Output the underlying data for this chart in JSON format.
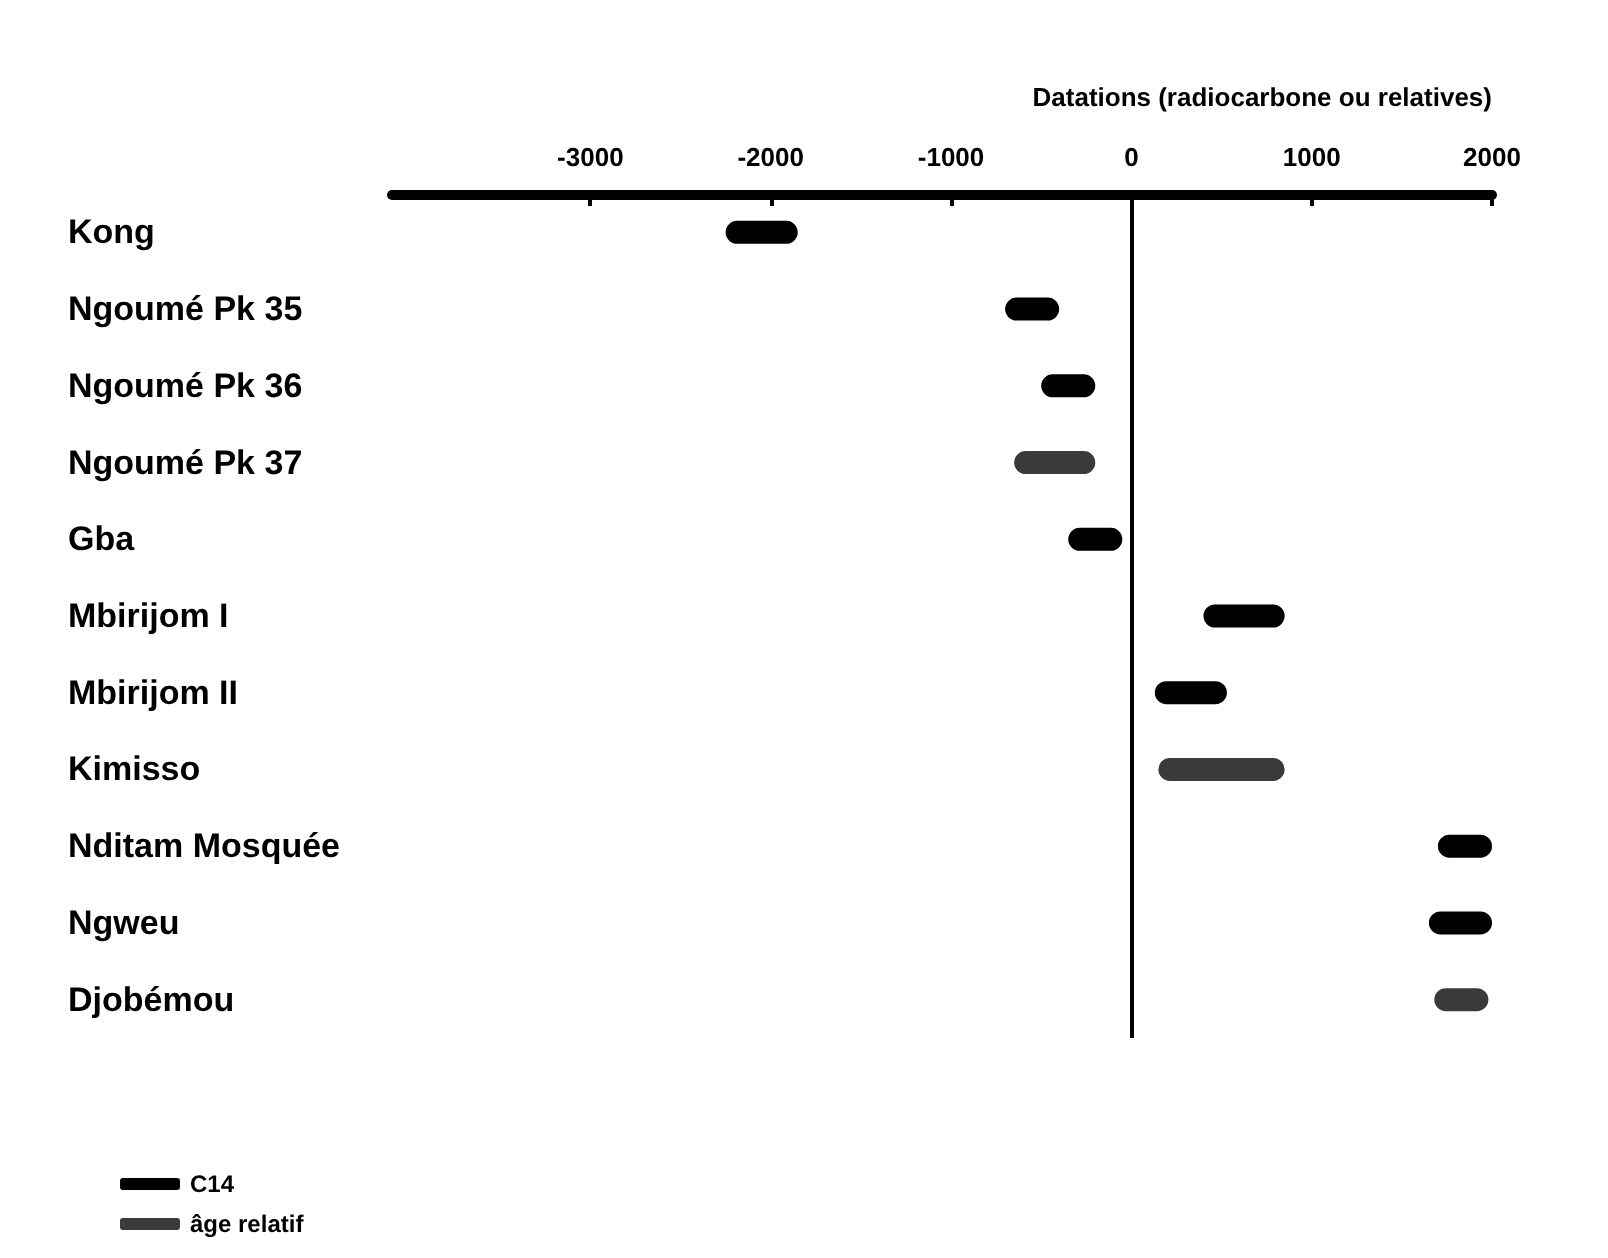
{
  "chart_data": {
    "type": "bar",
    "orientation": "horizontal",
    "xlabel": "Datations (radiocarbone ou relatives)",
    "categories": [
      "Kong",
      "Ngoumé Pk 35",
      "Ngoumé Pk 36",
      "Ngoumé Pk 37",
      "Gba",
      "Mbirijom I",
      "Mbirijom II",
      "Kimisso",
      "Nditam Mosquée",
      "Ngweu",
      "Djobémou"
    ],
    "series": [
      {
        "name": "C14",
        "color": "#000000",
        "base": [
          -2250,
          -700,
          -500,
          null,
          -350,
          400,
          130,
          null,
          1700,
          1650,
          null
        ],
        "values": [
          400,
          300,
          300,
          null,
          300,
          450,
          400,
          null,
          300,
          350,
          null
        ]
      },
      {
        "name": "âge relatif",
        "color": "#3a3a3a",
        "base": [
          null,
          null,
          null,
          -650,
          null,
          null,
          null,
          150,
          null,
          null,
          1680
        ],
        "values": [
          null,
          null,
          null,
          450,
          null,
          null,
          null,
          700,
          null,
          null,
          300
        ]
      }
    ],
    "xlim": [
      -4100,
      2000
    ],
    "xticks": [
      -3000,
      -2000,
      -1000,
      0,
      1000,
      2000
    ],
    "ref_lines": [
      {
        "axis": "x",
        "value": 0,
        "color": "#000000"
      }
    ],
    "grid": false,
    "legend": "bottom left"
  }
}
